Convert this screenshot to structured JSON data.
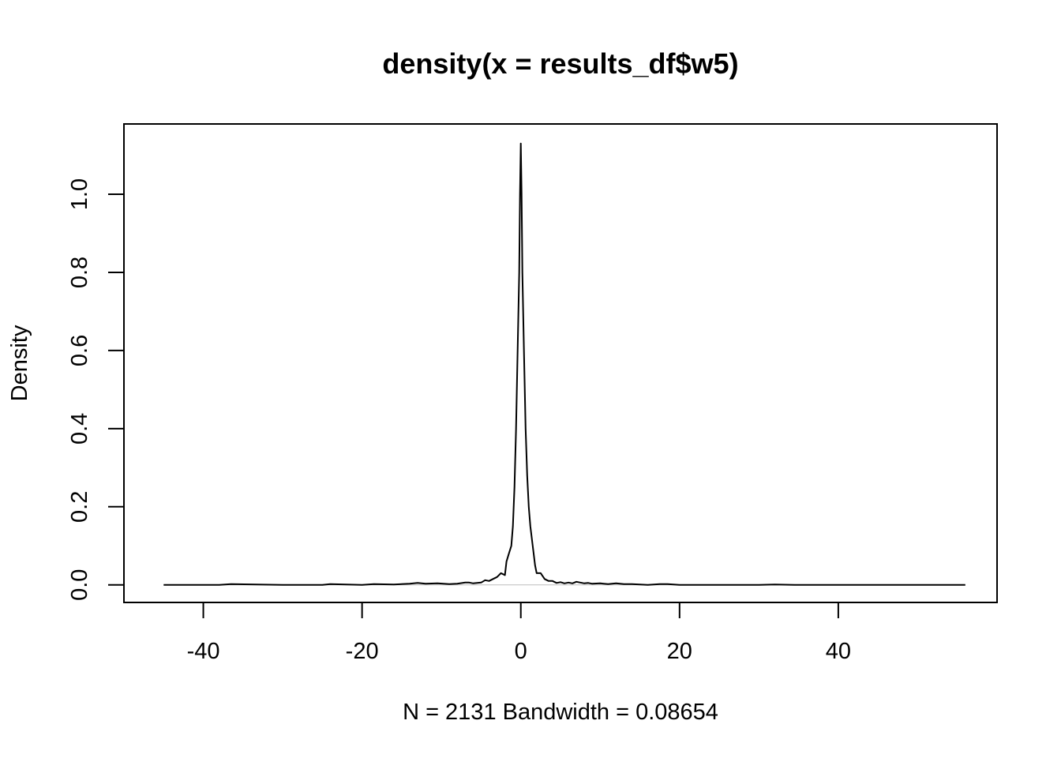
{
  "chart_data": {
    "type": "line",
    "title": "density(x = results_df$w5)",
    "xlabel": "N = 2131   Bandwidth = 0.08654",
    "ylabel": "Density",
    "xlim": [
      -50,
      60
    ],
    "ylim": [
      -0.045,
      1.18
    ],
    "x_ticks": [
      -40,
      -20,
      0,
      20,
      40
    ],
    "x_tick_labels": [
      "-40",
      "-20",
      "0",
      "20",
      "40"
    ],
    "y_ticks": [
      0.0,
      0.2,
      0.4,
      0.6,
      0.8,
      1.0
    ],
    "y_tick_labels": [
      "0.0",
      "0.2",
      "0.4",
      "0.6",
      "0.8",
      "1.0"
    ],
    "grid": false,
    "baseline_y": 0,
    "series": [
      {
        "line_color": "#000000",
        "x": [
          -45.0,
          -38.0,
          -36.5,
          -30.0,
          -25.0,
          -24.0,
          -20.0,
          -18.5,
          -16.0,
          -14.0,
          -13.0,
          -12.0,
          -10.5,
          -9.0,
          -8.0,
          -7.0,
          -6.5,
          -6.0,
          -5.0,
          -4.5,
          -4.0,
          -3.5,
          -3.0,
          -2.5,
          -2.0,
          -1.8,
          -1.5,
          -1.2,
          -1.0,
          -0.8,
          -0.6,
          -0.4,
          -0.2,
          -0.1,
          0.0,
          0.1,
          0.2,
          0.4,
          0.6,
          0.8,
          1.0,
          1.2,
          1.5,
          1.8,
          2.0,
          2.5,
          3.0,
          3.5,
          4.0,
          4.5,
          5.0,
          5.5,
          6.0,
          6.5,
          7.0,
          7.5,
          8.0,
          8.5,
          9.0,
          10.0,
          11.0,
          12.0,
          13.0,
          14.0,
          16.0,
          17.5,
          18.5,
          20.0,
          30.0,
          32.0,
          34.5,
          38.0,
          40.5,
          50.0,
          55.0,
          56.0
        ],
        "y": [
          0.0,
          0.0,
          0.002,
          0.0,
          0.0,
          0.002,
          0.0,
          0.002,
          0.001,
          0.003,
          0.005,
          0.003,
          0.004,
          0.002,
          0.003,
          0.006,
          0.006,
          0.004,
          0.006,
          0.012,
          0.01,
          0.015,
          0.02,
          0.03,
          0.025,
          0.06,
          0.08,
          0.1,
          0.15,
          0.25,
          0.4,
          0.6,
          0.8,
          1.0,
          1.13,
          1.0,
          0.8,
          0.6,
          0.4,
          0.28,
          0.2,
          0.15,
          0.1,
          0.05,
          0.03,
          0.03,
          0.015,
          0.01,
          0.01,
          0.005,
          0.007,
          0.004,
          0.006,
          0.004,
          0.008,
          0.006,
          0.004,
          0.005,
          0.003,
          0.004,
          0.002,
          0.004,
          0.002,
          0.002,
          0.0,
          0.002,
          0.002,
          0.0,
          0.0,
          0.001,
          0.0,
          0.0,
          0.0,
          0.0,
          0.0,
          0.0
        ]
      }
    ]
  }
}
